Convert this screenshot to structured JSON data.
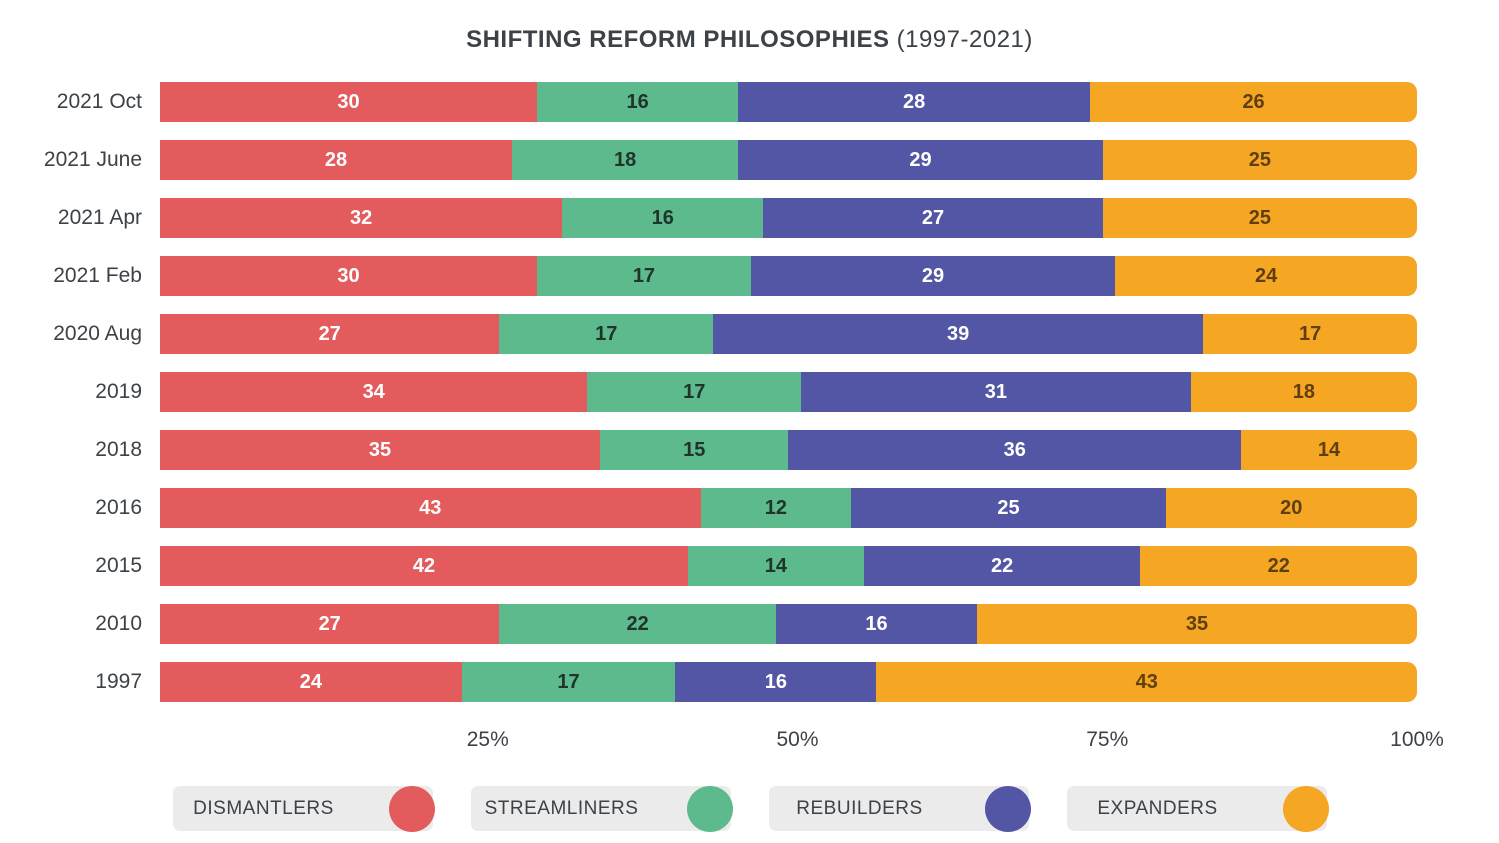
{
  "title": {
    "main": "SHIFTING REFORM PHILOSOPHIES",
    "suffix": " (1997-2021)"
  },
  "chart_data": {
    "type": "bar",
    "stacked": true,
    "orientation": "horizontal",
    "title": "SHIFTING REFORM PHILOSOPHIES (1997-2021)",
    "categories": [
      "2021 Oct",
      "2021 June",
      "2021 Apr",
      "2021 Feb",
      "2020 Aug",
      "2019",
      "2018",
      "2016",
      "2015",
      "2010",
      "1997"
    ],
    "series": [
      {
        "name": "DISMANTLERS",
        "color": "#E35B5C",
        "label_color": "#FFFFFF",
        "values": [
          30,
          28,
          32,
          30,
          27,
          34,
          35,
          43,
          42,
          27,
          24
        ]
      },
      {
        "name": "STREAMLINERS",
        "color": "#5CBA8D",
        "label_color": "#20342B",
        "values": [
          16,
          18,
          16,
          17,
          17,
          17,
          15,
          12,
          14,
          22,
          17
        ]
      },
      {
        "name": "REBUILDERS",
        "color": "#5355A5",
        "label_color": "#FFFFFF",
        "values": [
          28,
          29,
          27,
          29,
          39,
          31,
          36,
          25,
          22,
          16,
          16
        ]
      },
      {
        "name": "EXPANDERS",
        "color": "#F5A623",
        "label_color": "#5F3F10",
        "values": [
          26,
          25,
          25,
          24,
          17,
          18,
          14,
          20,
          22,
          35,
          43
        ]
      }
    ],
    "x_ticks": [
      "25%",
      "50%",
      "75%",
      "100%"
    ],
    "x_tick_positions": [
      25,
      50,
      75,
      100
    ],
    "xlim": [
      0,
      100
    ],
    "grid": false,
    "legend_position": "bottom",
    "legend": {
      "pill_background": "#EBEBEB"
    }
  }
}
